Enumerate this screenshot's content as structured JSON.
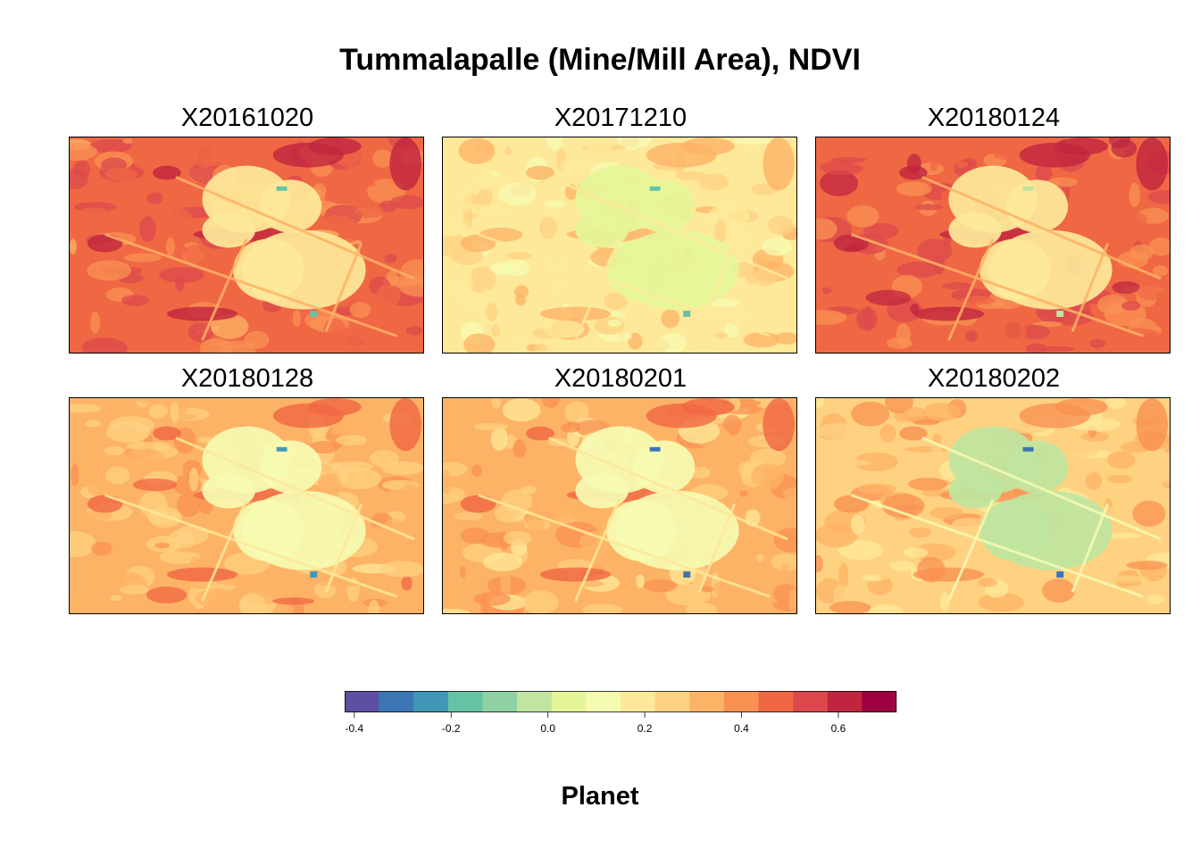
{
  "chart_data": {
    "type": "heatmap",
    "title": "Tummalapalle (Mine/Mill Area), NDVI",
    "panels": [
      {
        "name": "X20161020",
        "base_ndvi": 0.45,
        "pad_ndvi": 0.22,
        "pond_ndvi": -0.2
      },
      {
        "name": "X20171210",
        "base_ndvi": 0.2,
        "pad_ndvi": 0.05,
        "pond_ndvi": -0.15
      },
      {
        "name": "X20180124",
        "base_ndvi": 0.48,
        "pad_ndvi": 0.2,
        "pond_ndvi": -0.05
      },
      {
        "name": "X20180128",
        "base_ndvi": 0.32,
        "pad_ndvi": 0.1,
        "pond_ndvi": -0.25
      },
      {
        "name": "X20180201",
        "base_ndvi": 0.3,
        "pad_ndvi": 0.08,
        "pond_ndvi": -0.28
      },
      {
        "name": "X20180202",
        "base_ndvi": 0.28,
        "pad_ndvi": -0.02,
        "pond_ndvi": -0.33
      }
    ],
    "colorbar": {
      "title": "Planet",
      "range": [
        -0.42,
        0.72
      ],
      "ticks": [
        -0.4,
        -0.2,
        0.0,
        0.2,
        0.4,
        0.6
      ],
      "tick_labels": [
        "-0.4",
        "-0.2",
        "0.0",
        "0.2",
        "0.4",
        "0.6"
      ],
      "colors": [
        "#5e4fa2",
        "#3b75b4",
        "#4198b6",
        "#66c2a5",
        "#90d1a4",
        "#bfe5a0",
        "#e6f598",
        "#f6fbb2",
        "#fee99a",
        "#fed281",
        "#fdb366",
        "#f99153",
        "#f06744",
        "#dc494c",
        "#c0253f",
        "#9e0142"
      ]
    }
  }
}
